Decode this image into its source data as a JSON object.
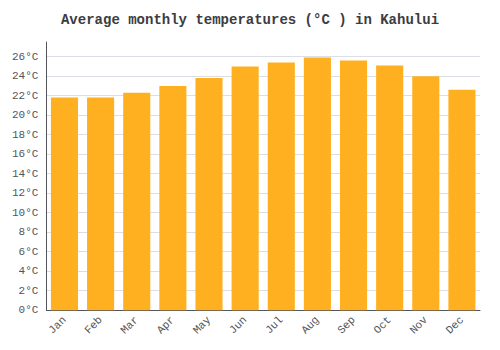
{
  "chart_data": {
    "type": "bar",
    "title": "Average monthly temperatures (°C ) in Kahului",
    "categories": [
      "Jan",
      "Feb",
      "Mar",
      "Apr",
      "May",
      "Jun",
      "Jul",
      "Aug",
      "Sep",
      "Oct",
      "Nov",
      "Dec"
    ],
    "values": [
      21.8,
      21.8,
      22.3,
      23.0,
      23.8,
      25.0,
      25.4,
      25.9,
      25.6,
      25.1,
      24.0,
      22.6
    ],
    "color": "#FFB020",
    "ylim": [
      0,
      27.5
    ],
    "yticks": [
      {
        "value": 0,
        "label": "0°C"
      },
      {
        "value": 2,
        "label": "2°C"
      },
      {
        "value": 4,
        "label": "4°C"
      },
      {
        "value": 6,
        "label": "6°C"
      },
      {
        "value": 8,
        "label": "8°C"
      },
      {
        "value": 10,
        "label": "10°C"
      },
      {
        "value": 12,
        "label": "12°C"
      },
      {
        "value": 14,
        "label": "14°C"
      },
      {
        "value": 16,
        "label": "16°C"
      },
      {
        "value": 18,
        "label": "18°C"
      },
      {
        "value": 20,
        "label": "20°C"
      },
      {
        "value": 22,
        "label": "22°C"
      },
      {
        "value": 24,
        "label": "24°C"
      },
      {
        "value": 26,
        "label": "26°C"
      }
    ],
    "grid": true
  }
}
